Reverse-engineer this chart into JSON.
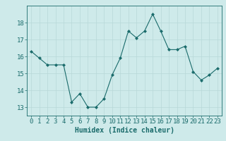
{
  "x": [
    0,
    1,
    2,
    3,
    4,
    5,
    6,
    7,
    8,
    9,
    10,
    11,
    12,
    13,
    14,
    15,
    16,
    17,
    18,
    19,
    20,
    21,
    22,
    23
  ],
  "y": [
    16.3,
    15.9,
    15.5,
    15.5,
    15.5,
    13.3,
    13.8,
    13.0,
    13.0,
    13.5,
    14.9,
    15.9,
    17.5,
    17.1,
    17.5,
    18.5,
    17.5,
    16.4,
    16.4,
    16.6,
    15.1,
    14.6,
    14.9,
    15.3
  ],
  "xlabel": "Humidex (Indice chaleur)",
  "ylim": [
    12.5,
    19.0
  ],
  "xlim": [
    -0.5,
    23.5
  ],
  "bg_color": "#ceeaea",
  "grid_color": "#b8d8d8",
  "line_color": "#1a6b6b",
  "marker_color": "#1a6b6b",
  "tick_color": "#1a6b6b",
  "label_color": "#1a6b6b",
  "yticks": [
    13,
    14,
    15,
    16,
    17,
    18
  ],
  "xticks": [
    0,
    1,
    2,
    3,
    4,
    5,
    6,
    7,
    8,
    9,
    10,
    11,
    12,
    13,
    14,
    15,
    16,
    17,
    18,
    19,
    20,
    21,
    22,
    23
  ],
  "xlabel_fontsize": 7.0,
  "tick_fontsize": 6.5
}
